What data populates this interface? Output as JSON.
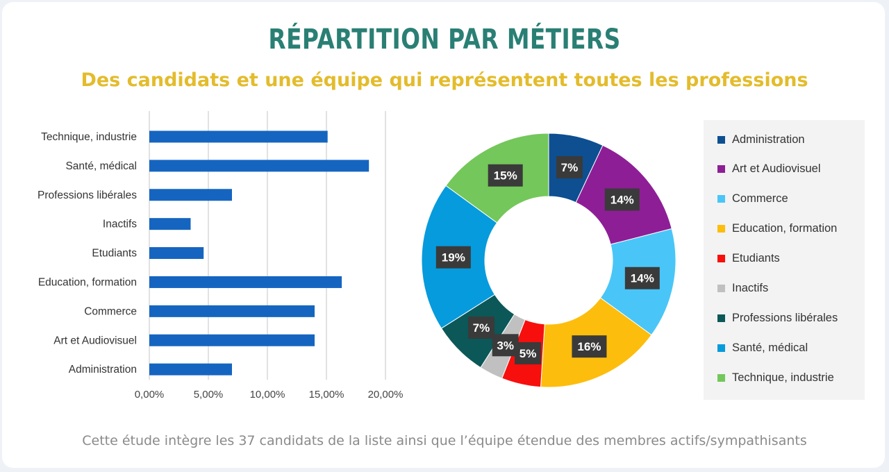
{
  "header": {
    "title": "RÉPARTITION PAR MÉTIERS",
    "subtitle": "Des candidats et une équipe qui représentent toutes les professions"
  },
  "footnote": "Cette étude intègre les 37 candidats de la liste ainsi que l’équipe étendue des membres actifs/sympathisants",
  "chart_data": [
    {
      "type": "bar",
      "orientation": "horizontal",
      "categories": [
        "Technique, industrie",
        "Santé, médical",
        "Professions libérales",
        "Inactifs",
        "Etudiants",
        "Education, formation",
        "Commerce",
        "Art et Audiovisuel",
        "Administration"
      ],
      "values": [
        15.1,
        18.6,
        7.0,
        3.5,
        4.6,
        16.3,
        14.0,
        14.0,
        7.0
      ],
      "value_unit": "%",
      "xlim": [
        0,
        20
      ],
      "x_ticks": [
        0,
        5,
        10,
        15,
        20
      ],
      "x_tick_labels": [
        "0,00%",
        "5,00%",
        "10,00%",
        "15,00%",
        "20,00%"
      ],
      "bar_color": "#1565c0",
      "grid": "vertical",
      "title": "",
      "xlabel": "",
      "ylabel": ""
    },
    {
      "type": "pie",
      "variant": "donut",
      "categories": [
        "Administration",
        "Art et Audiovisuel",
        "Commerce",
        "Education, formation",
        "Etudiants",
        "Inactifs",
        "Professions libérales",
        "Santé, médical",
        "Technique, industrie"
      ],
      "values": [
        7,
        14,
        14,
        16,
        5,
        3,
        7,
        19,
        15
      ],
      "labels": [
        "7%",
        "14%",
        "14%",
        "16%",
        "5%",
        "3%",
        "7%",
        "19%",
        "15%"
      ],
      "colors": [
        "#0d4f91",
        "#8e1e96",
        "#49c6f7",
        "#fdbd0c",
        "#f70f0d",
        "#c0c0c0",
        "#0c5858",
        "#069bdc",
        "#74c75a"
      ],
      "legend_position": "right"
    }
  ]
}
